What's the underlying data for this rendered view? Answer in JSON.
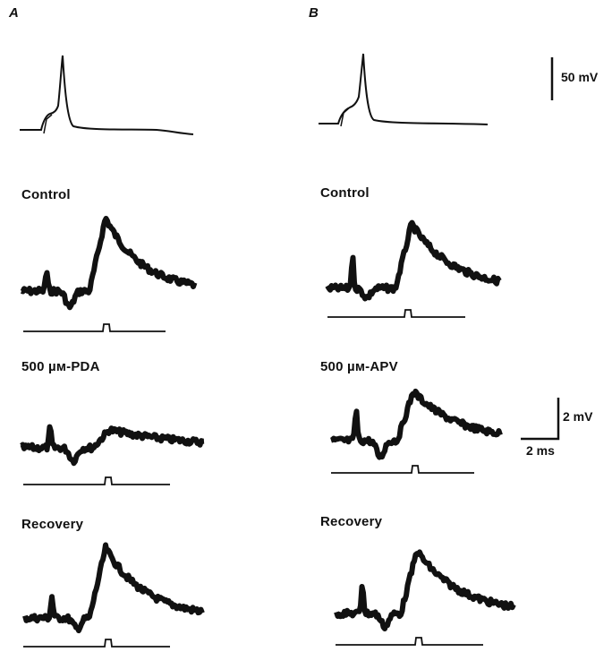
{
  "panels": [
    {
      "letter": "A",
      "conditions": [
        "Control",
        "500 µм-PDA",
        "Recovery"
      ]
    },
    {
      "letter": "B",
      "conditions": [
        "Control",
        "500 µм-APV",
        "Recovery"
      ]
    }
  ],
  "scale_bars": {
    "action_potential": "50 mV",
    "epsp_voltage": "2 mV",
    "epsp_time": "2 ms"
  }
}
